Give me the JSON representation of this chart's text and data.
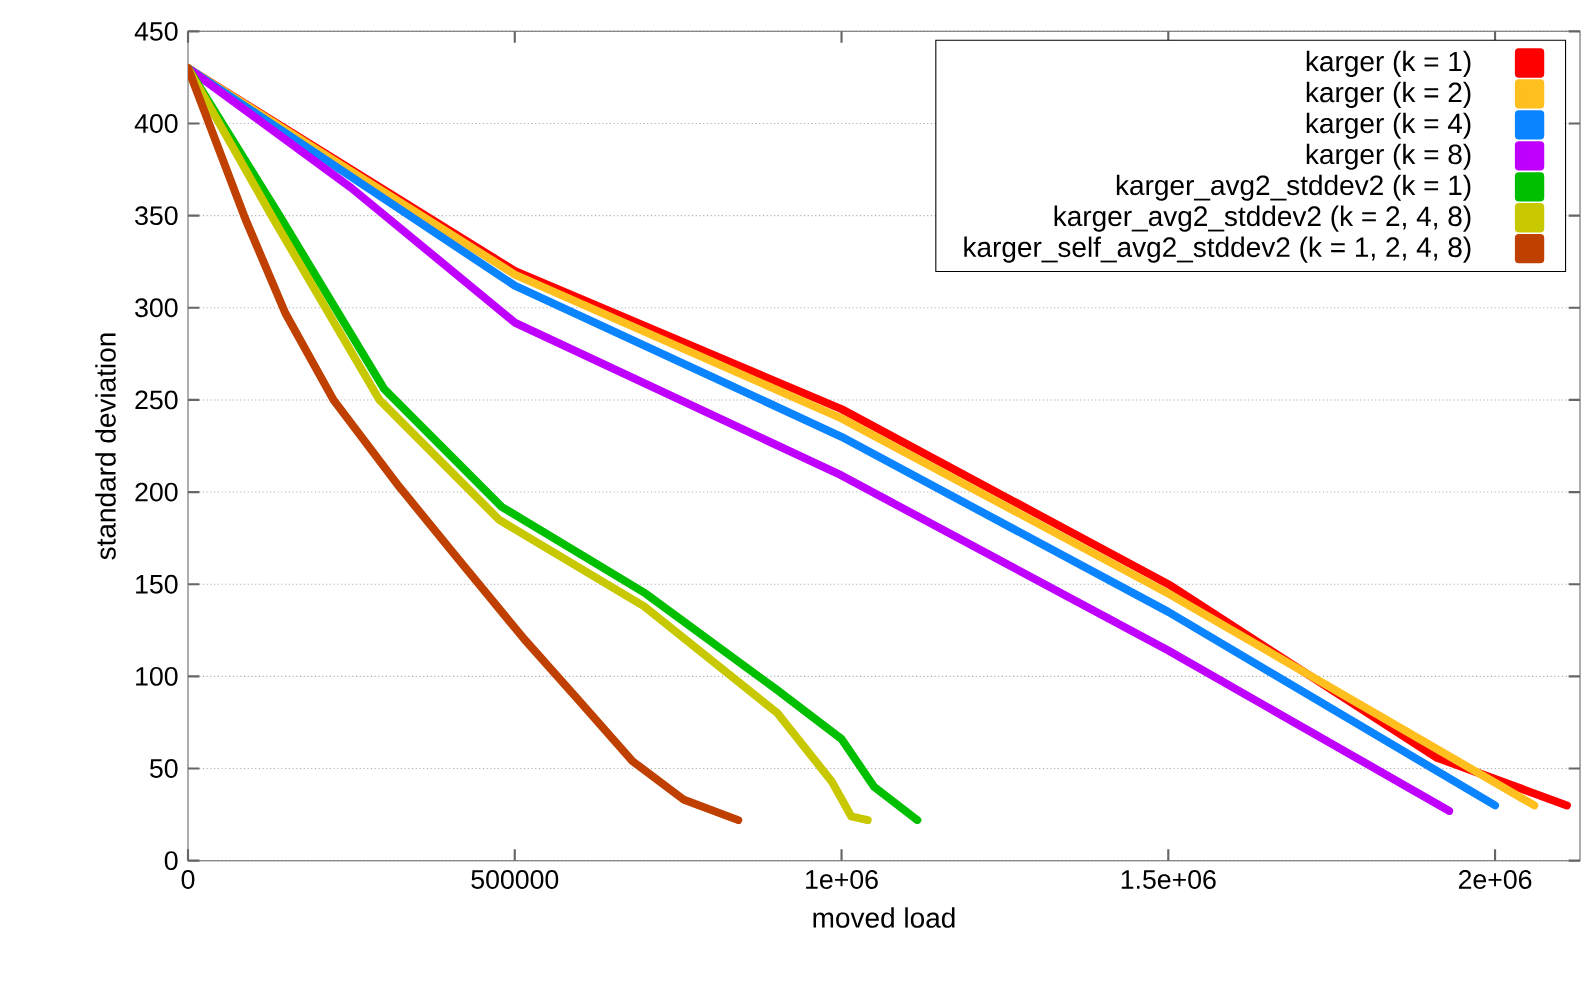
{
  "chart_data": {
    "type": "line",
    "xlabel": "moved load",
    "ylabel": "standard deviation",
    "series": [
      {
        "name": "karger (k = 1)",
        "color": "#ff0000",
        "x": [
          0,
          500000,
          1000000,
          1500000,
          1910000,
          2110000
        ],
        "values": [
          430,
          320,
          245,
          150,
          56,
          30
        ]
      },
      {
        "name": "karger (k = 2)",
        "color": "#ffbf1f",
        "x": [
          0,
          500000,
          1000000,
          1500000,
          2060000
        ],
        "values": [
          430,
          318,
          240,
          145,
          30
        ]
      },
      {
        "name": "karger (k = 4)",
        "color": "#0b84ff",
        "x": [
          0,
          500000,
          1000000,
          1500000,
          2000000
        ],
        "values": [
          430,
          312,
          230,
          135,
          30
        ]
      },
      {
        "name": "karger (k = 8)",
        "color": "#bf00ff",
        "x": [
          0,
          250000,
          500000,
          1000000,
          1500000,
          1930000
        ],
        "values": [
          430,
          365,
          292,
          209,
          114,
          27
        ]
      },
      {
        "name": "karger_avg2_stddev2 (k = 1)",
        "color": "#00bf00",
        "x": [
          0,
          140000,
          300000,
          480000,
          700000,
          900000,
          1000000,
          1050000,
          1116000
        ],
        "values": [
          430,
          350,
          256,
          192,
          145,
          93,
          66,
          40,
          22
        ]
      },
      {
        "name": "karger_avg2_stddev2 (k = 2, 4, 8)",
        "color": "#c8c800",
        "x": [
          0,
          131000,
          293000,
          476000,
          698000,
          902000,
          985000,
          1015000,
          1040000
        ],
        "values": [
          430,
          348,
          250,
          185,
          138,
          80,
          43,
          24,
          22
        ]
      },
      {
        "name": "karger_self_avg2_stddev2 (k = 1, 2, 4, 8)",
        "color": "#bf4000",
        "x": [
          0,
          88000,
          149000,
          222600,
          323000,
          415000,
          515000,
          598000,
          680000,
          759000,
          842000
        ],
        "values": [
          430,
          348,
          297,
          250,
          203,
          163,
          120,
          87,
          54,
          33,
          22
        ]
      }
    ],
    "xlim": [
      0,
      2130000
    ],
    "ylim": [
      0,
      450
    ],
    "xticks": [
      0,
      500000,
      {
        "value": 1000000,
        "label": "1e+06"
      },
      {
        "value": 1500000,
        "label": "1.5e+06"
      },
      {
        "value": 2000000,
        "label": "2e+06"
      }
    ],
    "yticks": [
      0,
      50,
      100,
      150,
      200,
      250,
      300,
      350,
      400,
      450
    ],
    "grid": "y",
    "legend": "top right",
    "marker": "none",
    "line_style": "solid"
  }
}
